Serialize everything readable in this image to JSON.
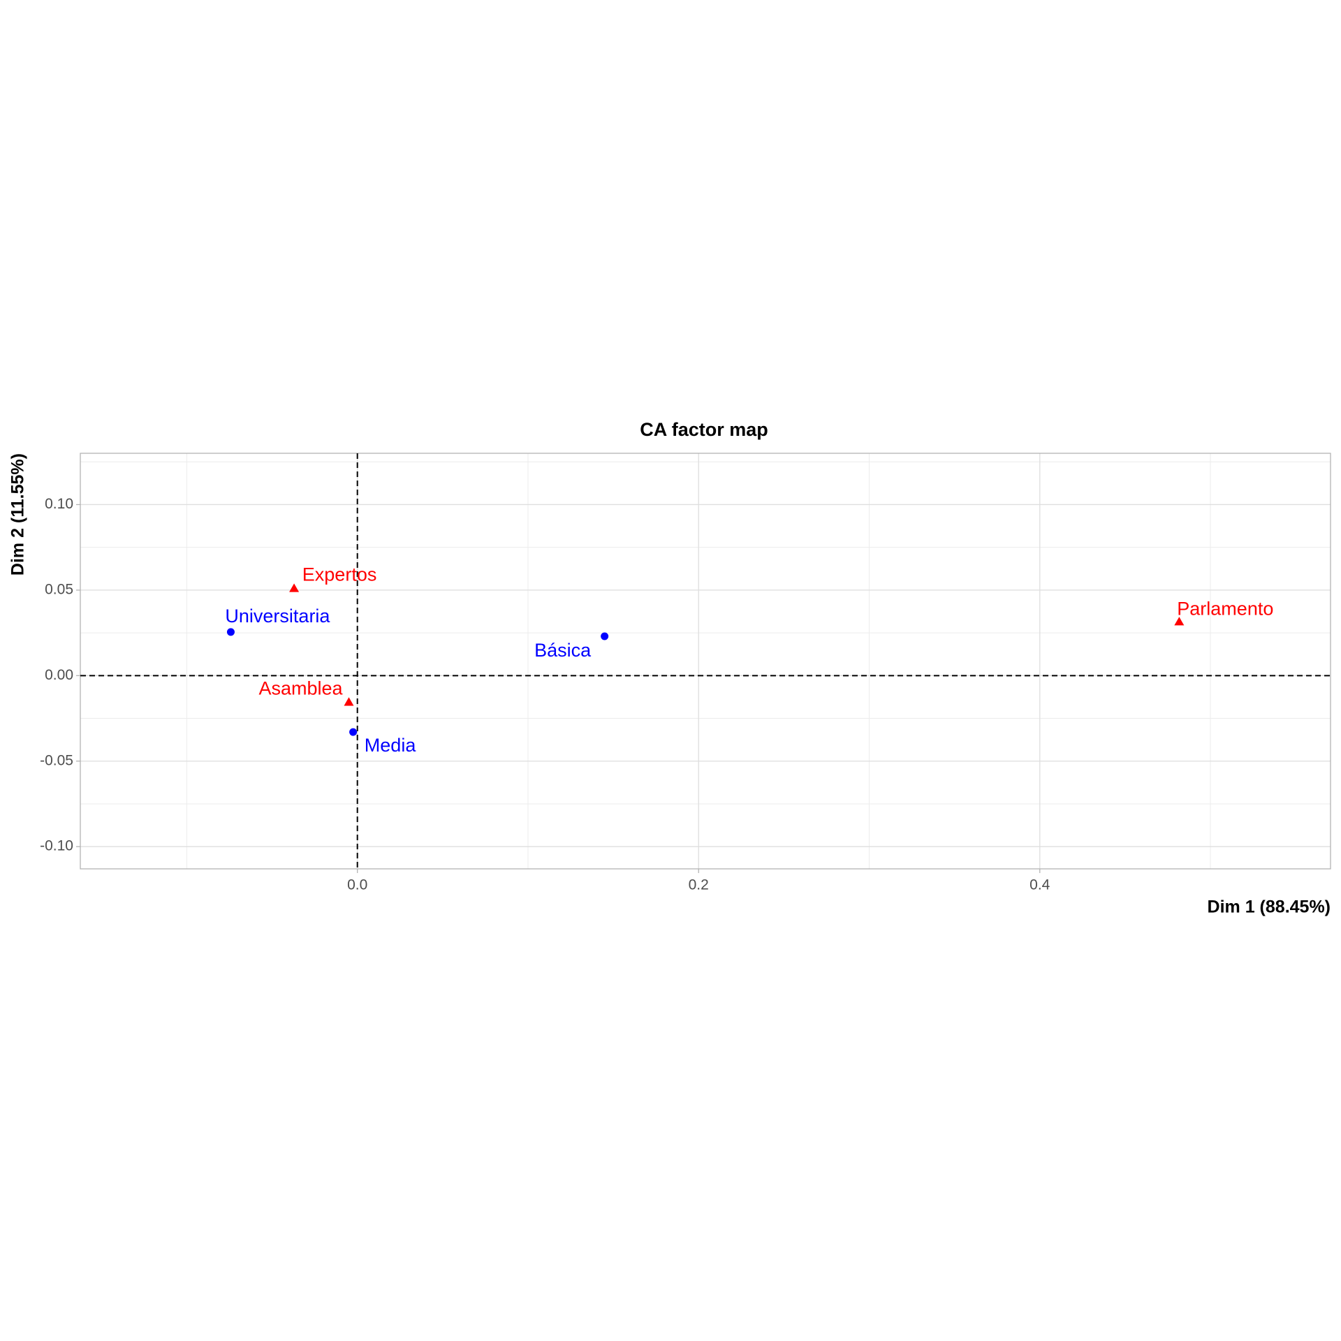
{
  "chart_data": {
    "type": "scatter",
    "title": "CA factor map",
    "x_label": "Dim 1 (88.45%)",
    "y_label": "Dim 2 (11.55%)",
    "xlim": [
      -0.1624,
      0.5704
    ],
    "ylim": [
      -0.113,
      0.13
    ],
    "xticks": [
      {
        "value": 0,
        "label": "0.0"
      },
      {
        "value": 0.2,
        "label": "0.2"
      },
      {
        "value": 0.4,
        "label": "0.4"
      }
    ],
    "yticks": [
      {
        "value": -0.1,
        "label": "-0.10"
      },
      {
        "value": -0.05,
        "label": "-0.05"
      },
      {
        "value": 0,
        "label": "0.00"
      },
      {
        "value": 0.05,
        "label": "0.05"
      },
      {
        "value": 0.1,
        "label": "0.10"
      }
    ],
    "grid": true,
    "hline": 0,
    "vline": 0,
    "series": [
      {
        "color": "#0000ff",
        "marker": "circle",
        "labels": [
          "Básica",
          "Media",
          "Universitaria"
        ],
        "x": [
          0.1449,
          -0.0025,
          -0.0742
        ],
        "y": [
          0.023,
          -0.033,
          0.0255
        ]
      },
      {
        "color": "#ff0000",
        "marker": "triangle",
        "labels": [
          "Asamblea",
          "Expertos",
          "Parlamento"
        ],
        "x": [
          -0.005,
          -0.0371,
          0.4817
        ],
        "y": [
          -0.0155,
          0.051,
          0.0315
        ]
      }
    ]
  }
}
